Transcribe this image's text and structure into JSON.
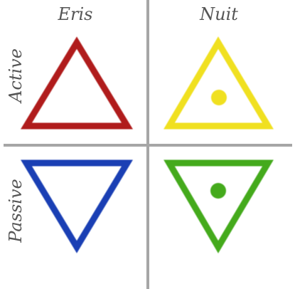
{
  "columns": [
    {
      "label": "Eris"
    },
    {
      "label": "Nuit"
    }
  ],
  "rows": [
    {
      "label": "Active"
    },
    {
      "label": "Passive"
    }
  ],
  "symbols": [
    {
      "name": "eris-active",
      "color": "#b01c1c",
      "orientation": "up",
      "dot": false
    },
    {
      "name": "nuit-active",
      "color": "#f0e020",
      "orientation": "up",
      "dot": true
    },
    {
      "name": "eris-passive",
      "color": "#1a3fb4",
      "orientation": "down",
      "dot": false
    },
    {
      "name": "nuit-passive",
      "color": "#44aa1c",
      "orientation": "down",
      "dot": true
    }
  ],
  "divider_color": "#a6a6a6"
}
